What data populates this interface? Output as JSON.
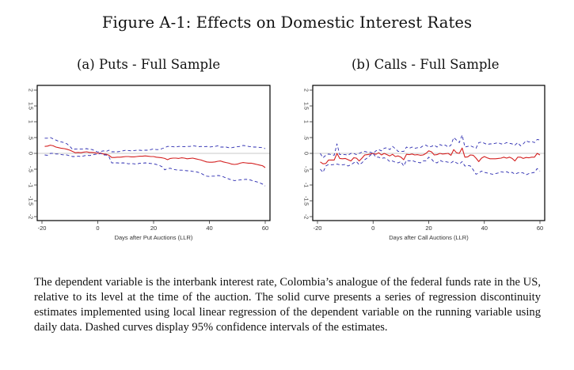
{
  "figure": {
    "title": "Figure A-1: Effects on Domestic Interest Rates",
    "caption": "The dependent variable is the interbank interest rate, Colombia’s analogue of the federal funds rate in the US, relative to its level at the time of the auction. The solid curve presents a series of regression discontinuity estimates implemented using local linear regression of the dependent variable on the running variable using daily data. Dashed curves display 95% confidence intervals of the estimates."
  },
  "colors": {
    "estimate": "#d42020",
    "ci": "#2a2ab0",
    "zero_line": "#c8c8c8",
    "frame": "#000000"
  },
  "chart_data": [
    {
      "type": "line",
      "title": "(a) Puts - Full Sample",
      "xlabel": "Days after Put Auctions (LLR)",
      "ylabel": "",
      "xlim": [
        -21,
        61
      ],
      "ylim": [
        -2.1,
        2.1
      ],
      "xticks": [
        -20,
        0,
        20,
        40,
        60
      ],
      "xtick_labels": [
        "-20",
        "0",
        "20",
        "40",
        "60"
      ],
      "yticks": [
        -2,
        -1.5,
        -1,
        -0.5,
        0,
        0.5,
        1,
        1.5,
        2
      ],
      "ytick_labels": [
        "-2",
        "-1.5",
        "-1",
        "-.5",
        "0",
        ".5",
        "1",
        "1.5",
        "2"
      ],
      "reference_line": 0,
      "grid": false,
      "legend": "none",
      "x": [
        -19,
        -18,
        -17,
        -16,
        -15,
        -14,
        -13,
        -12,
        -11,
        -10,
        -9,
        -8,
        -7,
        -6,
        -5,
        -4,
        -3,
        -2,
        -1,
        0,
        1,
        2,
        3,
        4,
        5,
        6,
        7,
        8,
        9,
        10,
        11,
        12,
        13,
        14,
        15,
        16,
        17,
        18,
        19,
        20,
        21,
        22,
        23,
        24,
        25,
        26,
        27,
        28,
        29,
        30,
        31,
        32,
        33,
        34,
        35,
        36,
        37,
        38,
        39,
        40,
        41,
        42,
        43,
        44,
        45,
        46,
        47,
        48,
        49,
        50,
        51,
        52,
        53,
        54,
        55,
        56,
        57,
        58,
        59,
        60
      ],
      "series": [
        {
          "name": "Estimate",
          "style": "solid",
          "values": [
            0.22,
            0.23,
            0.26,
            0.24,
            0.2,
            0.18,
            0.16,
            0.15,
            0.13,
            0.1,
            0.06,
            0.02,
            0.03,
            0.02,
            0.04,
            0.05,
            0.03,
            0.03,
            0.02,
            0.0,
            0.01,
            -0.02,
            -0.03,
            -0.06,
            -0.13,
            -0.13,
            -0.12,
            -0.12,
            -0.11,
            -0.1,
            -0.1,
            -0.11,
            -0.11,
            -0.1,
            -0.09,
            -0.09,
            -0.08,
            -0.09,
            -0.1,
            -0.1,
            -0.12,
            -0.13,
            -0.14,
            -0.16,
            -0.2,
            -0.16,
            -0.15,
            -0.15,
            -0.16,
            -0.14,
            -0.15,
            -0.17,
            -0.16,
            -0.15,
            -0.17,
            -0.19,
            -0.21,
            -0.24,
            -0.27,
            -0.28,
            -0.28,
            -0.27,
            -0.25,
            -0.24,
            -0.27,
            -0.29,
            -0.31,
            -0.34,
            -0.35,
            -0.34,
            -0.31,
            -0.29,
            -0.3,
            -0.31,
            -0.31,
            -0.33,
            -0.35,
            -0.37,
            -0.39,
            -0.45
          ]
        },
        {
          "name": "Upper 95% CI",
          "style": "dashed",
          "values": [
            0.48,
            0.48,
            0.5,
            0.46,
            0.42,
            0.38,
            0.36,
            0.34,
            0.3,
            0.22,
            0.12,
            0.14,
            0.14,
            0.14,
            0.14,
            0.15,
            0.13,
            0.12,
            0.08,
            0.04,
            0.06,
            0.08,
            0.06,
            0.1,
            0.05,
            0.05,
            0.05,
            0.06,
            0.08,
            0.1,
            0.09,
            0.08,
            0.09,
            0.1,
            0.1,
            0.09,
            0.1,
            0.1,
            0.12,
            0.14,
            0.12,
            0.12,
            0.15,
            0.18,
            0.22,
            0.22,
            0.21,
            0.2,
            0.22,
            0.22,
            0.21,
            0.22,
            0.22,
            0.24,
            0.23,
            0.21,
            0.22,
            0.21,
            0.22,
            0.2,
            0.21,
            0.22,
            0.24,
            0.2,
            0.2,
            0.2,
            0.18,
            0.18,
            0.2,
            0.21,
            0.22,
            0.25,
            0.24,
            0.22,
            0.21,
            0.2,
            0.2,
            0.19,
            0.18,
            0.15
          ]
        },
        {
          "name": "Lower 95% CI",
          "style": "dashed",
          "values": [
            -0.05,
            -0.06,
            0.0,
            0.0,
            -0.02,
            -0.02,
            -0.04,
            -0.05,
            -0.05,
            -0.08,
            -0.1,
            -0.1,
            -0.09,
            -0.1,
            -0.08,
            -0.06,
            -0.07,
            -0.05,
            -0.03,
            -0.03,
            0.0,
            -0.05,
            -0.05,
            -0.1,
            -0.3,
            -0.3,
            -0.3,
            -0.31,
            -0.3,
            -0.31,
            -0.33,
            -0.32,
            -0.33,
            -0.34,
            -0.31,
            -0.31,
            -0.3,
            -0.31,
            -0.32,
            -0.33,
            -0.35,
            -0.38,
            -0.42,
            -0.52,
            -0.48,
            -0.47,
            -0.5,
            -0.52,
            -0.53,
            -0.53,
            -0.54,
            -0.55,
            -0.55,
            -0.57,
            -0.58,
            -0.6,
            -0.63,
            -0.68,
            -0.72,
            -0.73,
            -0.72,
            -0.72,
            -0.7,
            -0.71,
            -0.74,
            -0.78,
            -0.81,
            -0.84,
            -0.86,
            -0.85,
            -0.84,
            -0.83,
            -0.82,
            -0.83,
            -0.85,
            -0.88,
            -0.9,
            -0.93,
            -0.97,
            -1.03
          ]
        }
      ]
    },
    {
      "type": "line",
      "title": "(b) Calls - Full Sample",
      "xlabel": "Days after Call Auctions (LLR)",
      "ylabel": "",
      "xlim": [
        -21,
        61
      ],
      "ylim": [
        -2.1,
        2.1
      ],
      "xticks": [
        -20,
        0,
        20,
        40,
        60
      ],
      "xtick_labels": [
        "-20",
        "0",
        "20",
        "40",
        "60"
      ],
      "yticks": [
        -2,
        -1.5,
        -1,
        -0.5,
        0,
        0.5,
        1,
        1.5,
        2
      ],
      "ytick_labels": [
        "-2",
        "-1.5",
        "-1",
        "-.5",
        "0",
        ".5",
        "1",
        "1.5",
        "2"
      ],
      "reference_line": 0,
      "grid": false,
      "legend": "none",
      "x": [
        -19,
        -18,
        -17,
        -16,
        -15,
        -14,
        -13,
        -12,
        -11,
        -10,
        -9,
        -8,
        -7,
        -6,
        -5,
        -4,
        -3,
        -2,
        -1,
        0,
        1,
        2,
        3,
        4,
        5,
        6,
        7,
        8,
        9,
        10,
        11,
        12,
        13,
        14,
        15,
        16,
        17,
        18,
        19,
        20,
        21,
        22,
        23,
        24,
        25,
        26,
        27,
        28,
        29,
        30,
        31,
        32,
        33,
        34,
        35,
        36,
        37,
        38,
        39,
        40,
        41,
        42,
        43,
        44,
        45,
        46,
        47,
        48,
        49,
        50,
        51,
        52,
        53,
        54,
        55,
        56,
        57,
        58,
        59,
        60
      ],
      "series": [
        {
          "name": "Estimate",
          "style": "solid",
          "values": [
            -0.27,
            -0.33,
            -0.32,
            -0.21,
            -0.21,
            -0.21,
            0.0,
            -0.16,
            -0.17,
            -0.16,
            -0.2,
            -0.24,
            -0.14,
            -0.15,
            -0.24,
            -0.15,
            -0.05,
            -0.04,
            -0.02,
            0.0,
            -0.03,
            0.02,
            -0.05,
            0.0,
            -0.04,
            -0.08,
            -0.03,
            -0.1,
            -0.08,
            -0.12,
            -0.2,
            -0.03,
            -0.04,
            -0.02,
            -0.05,
            -0.04,
            -0.06,
            -0.05,
            0.0,
            0.08,
            0.05,
            -0.05,
            -0.04,
            0.0,
            -0.02,
            -0.01,
            0.0,
            -0.06,
            0.12,
            0.02,
            0.0,
            0.17,
            -0.12,
            -0.11,
            -0.05,
            -0.06,
            -0.15,
            -0.26,
            -0.15,
            -0.1,
            -0.14,
            -0.17,
            -0.17,
            -0.17,
            -0.16,
            -0.15,
            -0.12,
            -0.15,
            -0.12,
            -0.16,
            -0.24,
            -0.12,
            -0.12,
            -0.16,
            -0.13,
            -0.14,
            -0.12,
            -0.12,
            0.0,
            -0.05
          ]
        },
        {
          "name": "Upper 95% CI",
          "style": "dashed",
          "values": [
            0.0,
            -0.14,
            -0.06,
            -0.02,
            -0.04,
            -0.06,
            0.3,
            -0.04,
            -0.04,
            -0.04,
            -0.06,
            0.0,
            0.0,
            -0.04,
            0.0,
            0.04,
            0.06,
            0.04,
            0.04,
            0.0,
            0.08,
            0.12,
            0.08,
            0.16,
            0.18,
            0.12,
            0.22,
            0.15,
            0.06,
            0.06,
            0.06,
            0.2,
            0.16,
            0.2,
            0.16,
            0.18,
            0.18,
            0.24,
            0.26,
            0.2,
            0.22,
            0.26,
            0.2,
            0.28,
            0.24,
            0.26,
            0.2,
            0.26,
            0.5,
            0.42,
            0.34,
            0.58,
            0.2,
            0.22,
            0.24,
            0.2,
            0.16,
            0.34,
            0.36,
            0.32,
            0.28,
            0.3,
            0.3,
            0.32,
            0.34,
            0.3,
            0.3,
            0.34,
            0.32,
            0.3,
            0.26,
            0.34,
            0.24,
            0.3,
            0.4,
            0.36,
            0.38,
            0.34,
            0.44,
            0.42
          ]
        },
        {
          "name": "Lower 95% CI",
          "style": "dashed",
          "values": [
            -0.5,
            -0.6,
            -0.4,
            -0.35,
            -0.36,
            -0.35,
            -0.34,
            -0.36,
            -0.36,
            -0.35,
            -0.4,
            -0.36,
            -0.3,
            -0.26,
            -0.36,
            -0.3,
            -0.2,
            -0.14,
            -0.06,
            0.0,
            -0.12,
            -0.12,
            -0.16,
            -0.14,
            -0.18,
            -0.26,
            -0.24,
            -0.28,
            -0.3,
            -0.26,
            -0.4,
            -0.22,
            -0.24,
            -0.22,
            -0.26,
            -0.28,
            -0.3,
            -0.24,
            -0.24,
            -0.12,
            -0.18,
            -0.28,
            -0.3,
            -0.22,
            -0.26,
            -0.26,
            -0.28,
            -0.3,
            -0.24,
            -0.3,
            -0.34,
            -0.26,
            -0.4,
            -0.38,
            -0.4,
            -0.52,
            -0.66,
            -0.62,
            -0.56,
            -0.6,
            -0.62,
            -0.64,
            -0.66,
            -0.64,
            -0.62,
            -0.58,
            -0.6,
            -0.58,
            -0.62,
            -0.6,
            -0.66,
            -0.62,
            -0.6,
            -0.62,
            -0.68,
            -0.64,
            -0.62,
            -0.6,
            -0.48,
            -0.56
          ]
        }
      ]
    }
  ]
}
